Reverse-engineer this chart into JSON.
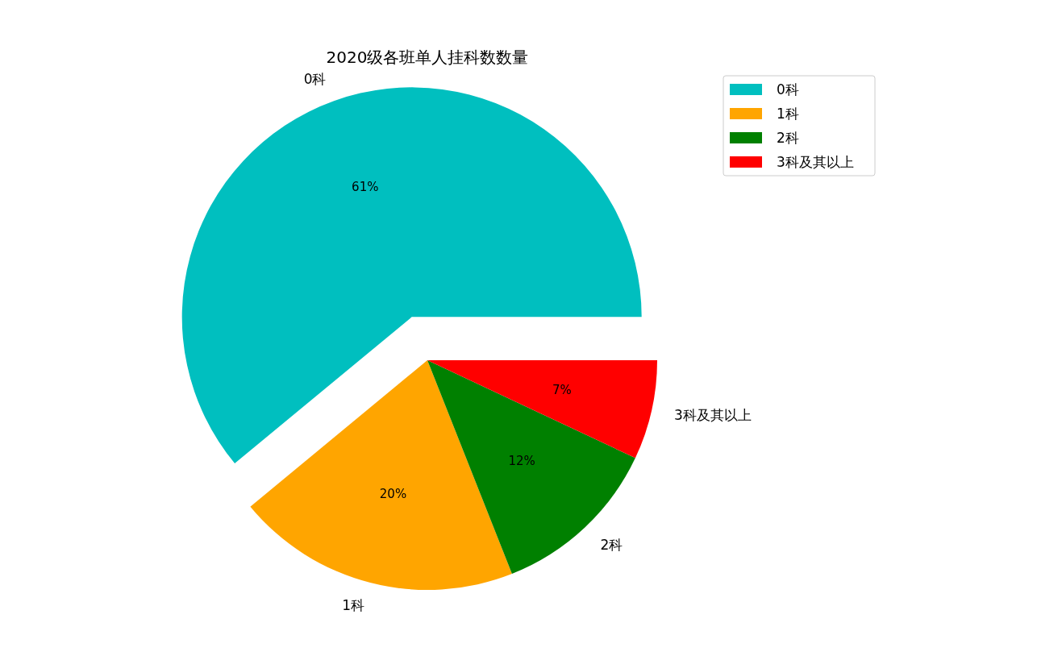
{
  "chart_data": {
    "type": "pie",
    "title": "2020级各班单人挂科数数量",
    "categories": [
      "0科",
      "1科",
      "2科",
      "3科及其以上"
    ],
    "values": [
      61,
      20,
      12,
      7
    ],
    "colors": [
      "#00bfbf",
      "#ffa500",
      "#008000",
      "#ff0000"
    ],
    "value_labels": [
      "61%",
      "20%",
      "12%",
      "7%"
    ],
    "legend": "top right"
  }
}
